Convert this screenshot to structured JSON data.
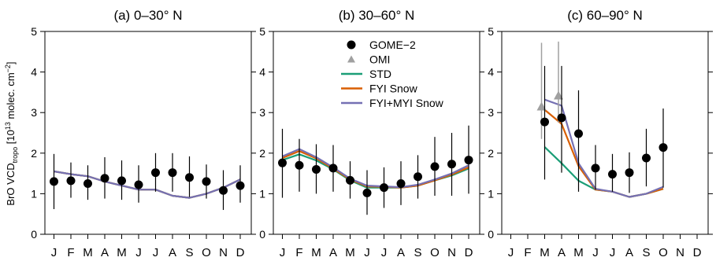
{
  "ylabel_parts": [
    "BrO VCD",
    "tropo",
    " [10",
    "13",
    " molec. cm",
    "−2",
    "]"
  ],
  "legend": {
    "items": [
      {
        "label": "GOME−2",
        "kind": "dot",
        "color": "#000000"
      },
      {
        "label": "OMI",
        "kind": "triangle",
        "color": "#a0a0a0"
      },
      {
        "label": "STD",
        "kind": "line",
        "color": "#1b9e77"
      },
      {
        "label": "FYI Snow",
        "kind": "line",
        "color": "#d95f02"
      },
      {
        "label": "FYI+MYI Snow",
        "kind": "line",
        "color": "#7570b3"
      }
    ]
  },
  "chart_data": [
    {
      "type": "line",
      "title": "(a)  0–30° N",
      "categories": [
        "J",
        "F",
        "M",
        "A",
        "M",
        "J",
        "J",
        "A",
        "S",
        "O",
        "N",
        "D"
      ],
      "ylim": [
        0,
        5
      ],
      "yticks": [
        0,
        1,
        2,
        3,
        4,
        5
      ],
      "gome2": {
        "x": [
          1,
          2,
          3,
          4,
          5,
          6,
          7,
          8,
          9,
          10,
          11,
          12
        ],
        "values": [
          1.3,
          1.32,
          1.25,
          1.38,
          1.32,
          1.22,
          1.52,
          1.52,
          1.4,
          1.3,
          1.08,
          1.2
        ],
        "err_low": [
          0.62,
          0.9,
          0.85,
          0.88,
          0.85,
          0.78,
          1.05,
          1.05,
          0.92,
          0.88,
          0.6,
          0.78
        ],
        "err_high": [
          1.98,
          1.77,
          1.7,
          1.9,
          1.82,
          1.7,
          2.0,
          2.0,
          1.92,
          1.72,
          1.58,
          1.7
        ]
      },
      "omi": {
        "x": [],
        "values": [],
        "err_low": [],
        "err_high": []
      },
      "series": [
        {
          "name": "STD",
          "x": [
            1,
            2,
            3,
            4,
            5,
            6,
            7,
            8,
            9,
            10,
            11,
            12
          ],
          "values": [
            1.55,
            1.48,
            1.43,
            1.3,
            1.2,
            1.1,
            1.1,
            0.95,
            0.9,
            1.0,
            1.15,
            1.35
          ]
        },
        {
          "name": "FYI Snow",
          "x": [
            1,
            2,
            3,
            4,
            5,
            6,
            7,
            8,
            9,
            10,
            11,
            12
          ],
          "values": [
            1.55,
            1.48,
            1.43,
            1.3,
            1.2,
            1.1,
            1.1,
            0.95,
            0.9,
            1.0,
            1.15,
            1.35
          ]
        },
        {
          "name": "FYI+MYI Snow",
          "x": [
            1,
            2,
            3,
            4,
            5,
            6,
            7,
            8,
            9,
            10,
            11,
            12
          ],
          "values": [
            1.55,
            1.48,
            1.43,
            1.3,
            1.2,
            1.1,
            1.1,
            0.95,
            0.9,
            1.0,
            1.15,
            1.35
          ]
        }
      ]
    },
    {
      "type": "line",
      "title": "(b)  30–60° N",
      "categories": [
        "J",
        "F",
        "M",
        "A",
        "M",
        "J",
        "J",
        "A",
        "S",
        "O",
        "N",
        "D"
      ],
      "ylim": [
        0,
        5
      ],
      "yticks": [
        0,
        1,
        2,
        3,
        4,
        5
      ],
      "gome2": {
        "x": [
          1,
          2,
          3,
          4,
          5,
          6,
          7,
          8,
          9,
          10,
          11,
          12
        ],
        "values": [
          1.76,
          1.7,
          1.6,
          1.63,
          1.33,
          1.02,
          1.15,
          1.25,
          1.42,
          1.67,
          1.73,
          1.83
        ],
        "err_low": [
          0.9,
          1.05,
          1.0,
          1.05,
          0.88,
          0.48,
          0.65,
          0.72,
          0.88,
          0.95,
          0.95,
          1.0
        ],
        "err_high": [
          2.6,
          2.35,
          2.22,
          2.2,
          1.8,
          1.58,
          1.65,
          1.8,
          1.95,
          2.4,
          2.5,
          2.68
        ]
      },
      "omi": {
        "x": [],
        "values": [],
        "err_low": [],
        "err_high": []
      },
      "series": [
        {
          "name": "STD",
          "x": [
            1,
            2,
            3,
            4,
            5,
            6,
            7,
            8,
            9,
            10,
            11,
            12
          ],
          "values": [
            1.83,
            1.97,
            1.82,
            1.6,
            1.33,
            1.15,
            1.15,
            1.15,
            1.2,
            1.33,
            1.45,
            1.62
          ]
        },
        {
          "name": "FYI Snow",
          "x": [
            1,
            2,
            3,
            4,
            5,
            6,
            7,
            8,
            9,
            10,
            11,
            12
          ],
          "values": [
            1.88,
            2.05,
            1.87,
            1.62,
            1.35,
            1.18,
            1.17,
            1.15,
            1.2,
            1.33,
            1.47,
            1.65
          ]
        },
        {
          "name": "FYI+MYI Snow",
          "x": [
            1,
            2,
            3,
            4,
            5,
            6,
            7,
            8,
            9,
            10,
            11,
            12
          ],
          "values": [
            1.92,
            2.1,
            1.9,
            1.65,
            1.37,
            1.2,
            1.18,
            1.16,
            1.22,
            1.35,
            1.5,
            1.7
          ]
        }
      ]
    },
    {
      "type": "line",
      "title": "(c)  60–90° N",
      "categories": [
        "J",
        "F",
        "M",
        "A",
        "M",
        "J",
        "J",
        "A",
        "S",
        "O",
        "N",
        "D"
      ],
      "ylim": [
        0,
        5
      ],
      "yticks": [
        0,
        1,
        2,
        3,
        4,
        5
      ],
      "gome2": {
        "x": [
          3,
          4,
          5,
          6,
          7,
          8,
          9,
          10
        ],
        "values": [
          2.77,
          2.87,
          2.48,
          1.63,
          1.48,
          1.52,
          1.88,
          2.14
        ],
        "err_low": [
          1.35,
          1.52,
          1.05,
          1.1,
          1.05,
          1.02,
          1.18,
          1.15
        ],
        "err_high": [
          4.15,
          4.15,
          3.55,
          2.2,
          1.98,
          2.02,
          2.6,
          3.1
        ]
      },
      "omi": {
        "x": [
          3,
          4
        ],
        "values": [
          3.15,
          3.42
        ],
        "err_low": [
          2.35,
          2.75
        ],
        "err_high": [
          4.72,
          4.75
        ]
      },
      "series": [
        {
          "name": "STD",
          "x": [
            3,
            4,
            5,
            6,
            7,
            8,
            9,
            10
          ],
          "values": [
            2.15,
            1.75,
            1.32,
            1.1,
            1.05,
            0.92,
            1.0,
            1.12
          ]
        },
        {
          "name": "FYI Snow",
          "x": [
            3,
            4,
            5,
            6,
            7,
            8,
            9,
            10
          ],
          "values": [
            3.07,
            2.72,
            1.68,
            1.1,
            1.05,
            0.92,
            1.0,
            1.12
          ]
        },
        {
          "name": "FYI+MYI Snow",
          "x": [
            3,
            4,
            5,
            6,
            7,
            8,
            9,
            10
          ],
          "values": [
            3.32,
            3.17,
            1.75,
            1.12,
            1.05,
            0.92,
            1.0,
            1.17
          ]
        }
      ]
    }
  ]
}
